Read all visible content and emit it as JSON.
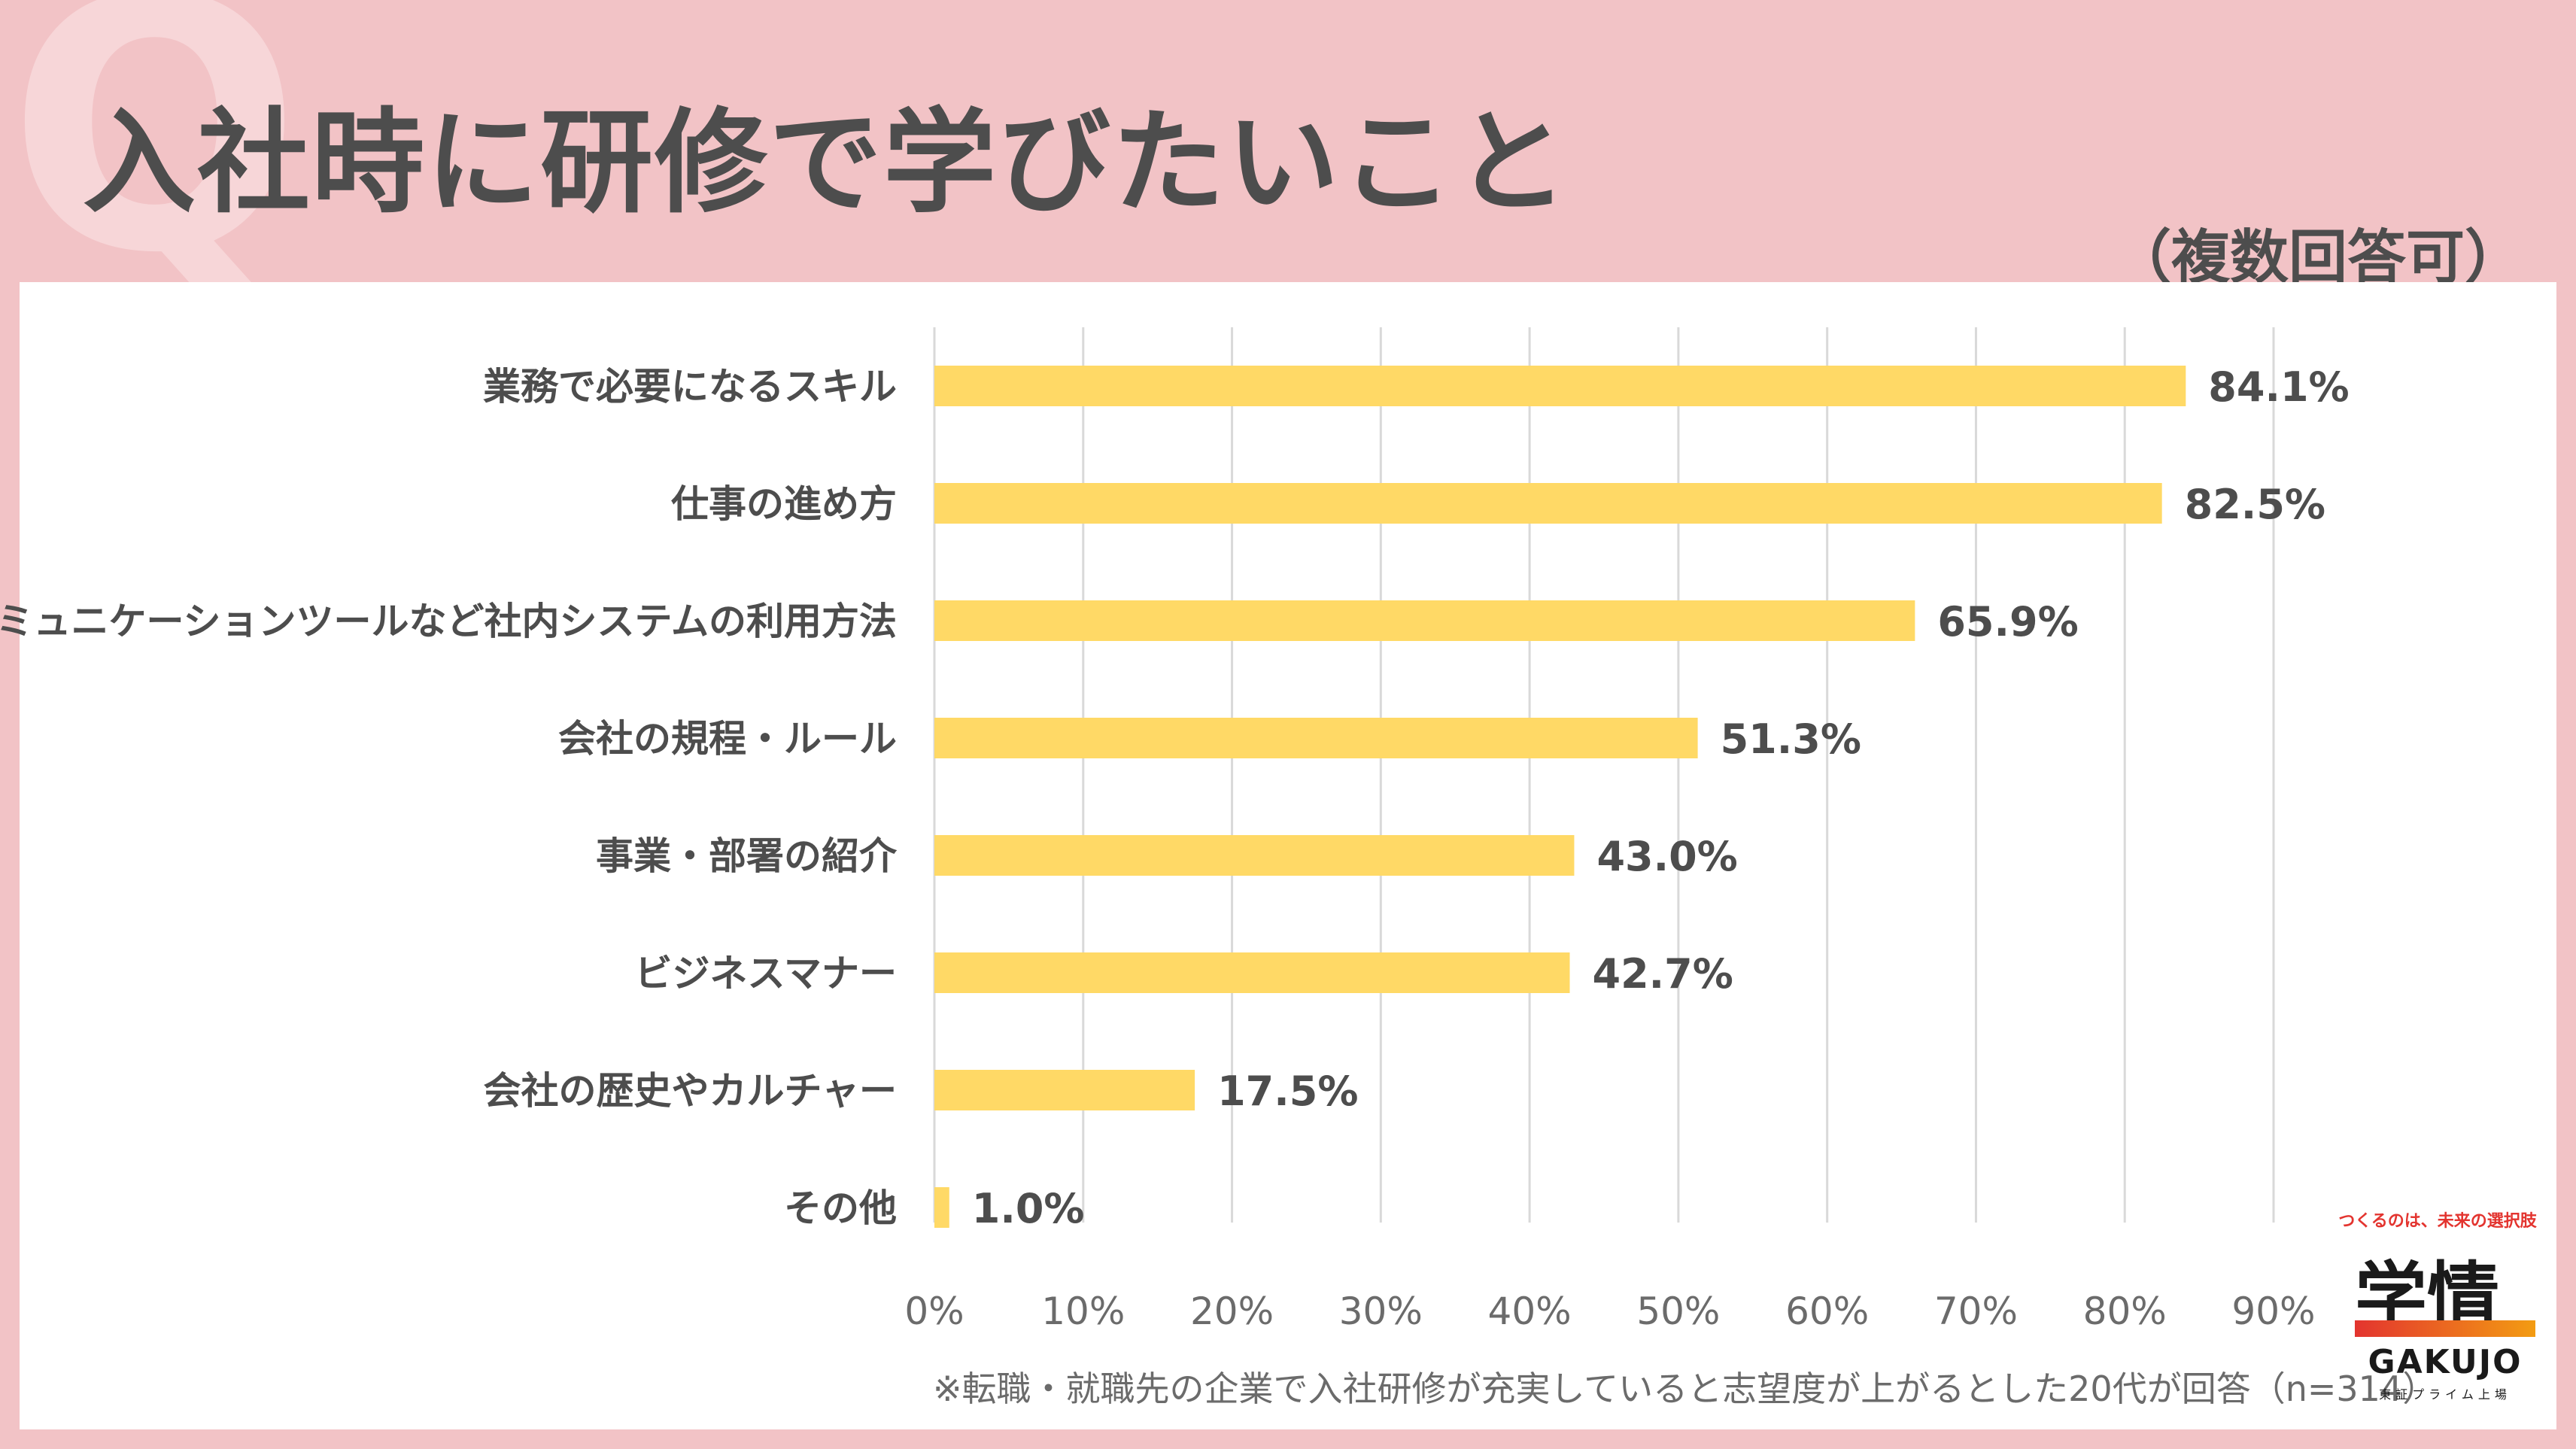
{
  "header": {
    "q_letter": "Q",
    "title": "入社時に研修で学びたいこと",
    "multiple_answer": "（複数回答可）"
  },
  "chart_data": {
    "type": "bar",
    "orientation": "horizontal",
    "categories": [
      "業務で必要になるスキル",
      "仕事の進め方",
      "コミュニケーションツールなど社内システムの利用方法",
      "会社の規程・ルール",
      "事業・部署の紹介",
      "ビジネスマナー",
      "会社の歴史やカルチャー",
      "その他"
    ],
    "values": [
      84.1,
      82.5,
      65.9,
      51.3,
      43.0,
      42.7,
      17.5,
      1.0
    ],
    "value_labels": [
      "84.1%",
      "82.5%",
      "65.9%",
      "51.3%",
      "43.0%",
      "42.7%",
      "17.5%",
      "1.0%"
    ],
    "xlim": [
      0,
      90
    ],
    "x_ticks": [
      "0%",
      "10%",
      "20%",
      "30%",
      "40%",
      "50%",
      "60%",
      "70%",
      "80%",
      "90%"
    ],
    "grid": "vertical",
    "bar_color": "#ffd966",
    "grid_color": "#d9d9d9"
  },
  "footnote": "※転職・就職先の企業で入社研修が充実していると志望度が上がるとした20代が回答（n=314）",
  "logo": {
    "tagline": "つくるのは、未来の選択肢",
    "name": "学情",
    "name_en": "GAKUJO",
    "sub": "東証プライム上場"
  }
}
